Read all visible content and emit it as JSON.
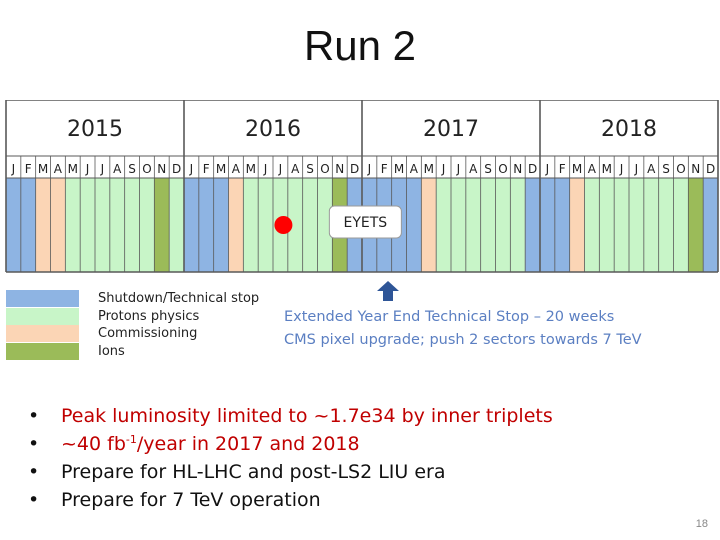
{
  "title": "Run 2",
  "colors": {
    "shutdown": "#8eb4e3",
    "protons": "#c8f5c8",
    "commissioning": "#fbd5b5",
    "ions": "#9bbb59",
    "marker": "#ff0000",
    "border": "#595959",
    "note": "#5b7fc2",
    "red_text": "#c00000"
  },
  "timeline": {
    "years": [
      "2015",
      "2016",
      "2017",
      "2018"
    ],
    "months": [
      "J",
      "F",
      "M",
      "A",
      "M",
      "J",
      "J",
      "A",
      "S",
      "O",
      "N",
      "D"
    ],
    "month_fill": {
      "2015": [
        "shutdown",
        "shutdown",
        "commissioning",
        "commissioning",
        "protons",
        "protons",
        "protons",
        "protons",
        "protons",
        "protons",
        "ions",
        "protons"
      ],
      "2016": [
        "shutdown",
        "shutdown",
        "shutdown",
        "commissioning",
        "protons",
        "protons",
        "protons",
        "protons",
        "protons",
        "protons",
        "ions",
        "shutdown"
      ],
      "2017": [
        "shutdown",
        "shutdown",
        "shutdown",
        "shutdown",
        "commissioning",
        "protons",
        "protons",
        "protons",
        "protons",
        "protons",
        "protons",
        "shutdown"
      ],
      "2018": [
        "shutdown",
        "shutdown",
        "commissioning",
        "protons",
        "protons",
        "protons",
        "protons",
        "protons",
        "protons",
        "protons",
        "ions",
        "shutdown"
      ]
    },
    "eyets_label": "EYETS"
  },
  "legend": [
    {
      "key": "shutdown",
      "label": "Shutdown/Technical stop"
    },
    {
      "key": "protons",
      "label": "Protons physics"
    },
    {
      "key": "commissioning",
      "label": "Commissioning"
    },
    {
      "key": "ions",
      "label": "Ions"
    }
  ],
  "eyets_note": {
    "line1": "Extended Year End Technical Stop – 20 weeks",
    "line2": "CMS pixel upgrade; push 2 sectors towards 7 TeV"
  },
  "bullets": {
    "b1": "Peak luminosity limited to ~1.7e34 by inner triplets",
    "b2_pre": "~40 fb",
    "b2_sup": "-1",
    "b2_post": "/year in 2017 and 2018",
    "b3": "Prepare for HL-LHC and post-LS2 LIU era",
    "b4": "Prepare for 7 TeV operation",
    "bullet_char": "•"
  },
  "page_number": "18"
}
